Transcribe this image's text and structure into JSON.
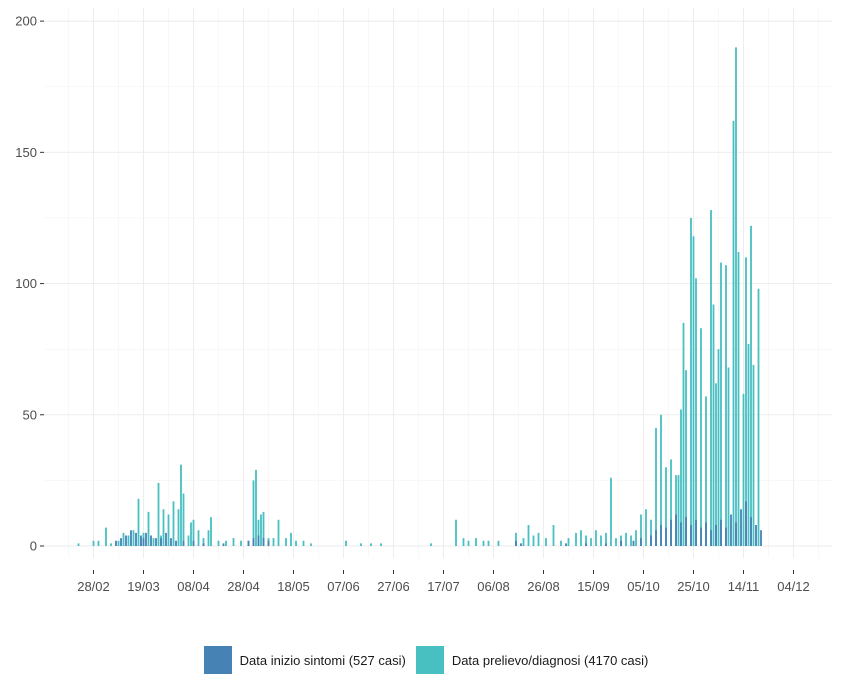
{
  "chart_data": {
    "type": "bar",
    "title": "",
    "xlabel": "",
    "ylabel": "",
    "ylim": [
      0,
      205
    ],
    "y_ticks": [
      0,
      50,
      100,
      150,
      200
    ],
    "x_tick_labels": [
      "28/02",
      "19/03",
      "08/04",
      "28/04",
      "18/05",
      "07/06",
      "27/06",
      "17/07",
      "06/08",
      "26/08",
      "15/09",
      "05/10",
      "25/10",
      "14/11",
      "04/12"
    ],
    "x_tick_dates": [
      "2020-02-28",
      "2020-03-19",
      "2020-04-08",
      "2020-04-28",
      "2020-05-18",
      "2020-06-07",
      "2020-06-27",
      "2020-07-17",
      "2020-08-06",
      "2020-08-26",
      "2020-09-15",
      "2020-10-05",
      "2020-10-25",
      "2020-11-14",
      "2020-12-04"
    ],
    "x_range": [
      "2020-02-17",
      "2020-12-09"
    ],
    "grid": true,
    "legend_position": "bottom",
    "stacked": true,
    "series": [
      {
        "name": "Data inizio sintomi (527 casi)",
        "color": "#4682b4",
        "points": [
          [
            "2020-03-08",
            2
          ],
          [
            "2020-03-10",
            3
          ],
          [
            "2020-03-12",
            4
          ],
          [
            "2020-03-14",
            6
          ],
          [
            "2020-03-16",
            5
          ],
          [
            "2020-03-18",
            4
          ],
          [
            "2020-03-19",
            3
          ],
          [
            "2020-03-20",
            5
          ],
          [
            "2020-03-22",
            4
          ],
          [
            "2020-03-24",
            3
          ],
          [
            "2020-03-26",
            3
          ],
          [
            "2020-03-28",
            5
          ],
          [
            "2020-03-30",
            3
          ],
          [
            "2020-04-01",
            2
          ],
          [
            "2020-04-04",
            2
          ],
          [
            "2020-04-08",
            2
          ],
          [
            "2020-04-12",
            1
          ],
          [
            "2020-04-20",
            1
          ],
          [
            "2020-04-30",
            2
          ],
          [
            "2020-05-02",
            3
          ],
          [
            "2020-05-04",
            4
          ],
          [
            "2020-05-06",
            3
          ],
          [
            "2020-05-08",
            2
          ],
          [
            "2020-08-15",
            2
          ],
          [
            "2020-08-17",
            1
          ],
          [
            "2020-09-04",
            1
          ],
          [
            "2020-09-12",
            1
          ],
          [
            "2020-09-20",
            1
          ],
          [
            "2020-09-26",
            2
          ],
          [
            "2020-10-01",
            2
          ],
          [
            "2020-10-04",
            3
          ],
          [
            "2020-10-08",
            4
          ],
          [
            "2020-10-10",
            6
          ],
          [
            "2020-10-12",
            8
          ],
          [
            "2020-10-14",
            7
          ],
          [
            "2020-10-16",
            10
          ],
          [
            "2020-10-18",
            12
          ],
          [
            "2020-10-20",
            9
          ],
          [
            "2020-10-22",
            11
          ],
          [
            "2020-10-24",
            8
          ],
          [
            "2020-10-26",
            10
          ],
          [
            "2020-10-28",
            7
          ],
          [
            "2020-10-30",
            9
          ],
          [
            "2020-11-01",
            6
          ],
          [
            "2020-11-03",
            8
          ],
          [
            "2020-11-05",
            10
          ],
          [
            "2020-11-07",
            7
          ],
          [
            "2020-11-09",
            12
          ],
          [
            "2020-11-11",
            9
          ],
          [
            "2020-11-13",
            14
          ],
          [
            "2020-11-15",
            17
          ],
          [
            "2020-11-17",
            11
          ],
          [
            "2020-11-19",
            8
          ],
          [
            "2020-11-21",
            6
          ]
        ]
      },
      {
        "name": "Data prelievo/diagnosi (4170 casi)",
        "color": "#48bfc0",
        "points": [
          [
            "2020-02-22",
            1
          ],
          [
            "2020-02-28",
            2
          ],
          [
            "2020-03-01",
            2
          ],
          [
            "2020-03-04",
            7
          ],
          [
            "2020-03-06",
            1
          ],
          [
            "2020-03-09",
            2
          ],
          [
            "2020-03-11",
            5
          ],
          [
            "2020-03-13",
            4
          ],
          [
            "2020-03-15",
            6
          ],
          [
            "2020-03-17",
            18
          ],
          [
            "2020-03-18",
            3
          ],
          [
            "2020-03-19",
            5
          ],
          [
            "2020-03-21",
            13
          ],
          [
            "2020-03-23",
            3
          ],
          [
            "2020-03-25",
            24
          ],
          [
            "2020-03-26",
            4
          ],
          [
            "2020-03-27",
            14
          ],
          [
            "2020-03-29",
            12
          ],
          [
            "2020-03-31",
            17
          ],
          [
            "2020-04-02",
            14
          ],
          [
            "2020-04-03",
            31
          ],
          [
            "2020-04-04",
            20
          ],
          [
            "2020-04-06",
            4
          ],
          [
            "2020-04-07",
            9
          ],
          [
            "2020-04-08",
            10
          ],
          [
            "2020-04-10",
            6
          ],
          [
            "2020-04-12",
            3
          ],
          [
            "2020-04-14",
            6
          ],
          [
            "2020-04-15",
            11
          ],
          [
            "2020-04-18",
            2
          ],
          [
            "2020-04-21",
            2
          ],
          [
            "2020-04-24",
            3
          ],
          [
            "2020-04-27",
            2
          ],
          [
            "2020-04-30",
            2
          ],
          [
            "2020-05-02",
            25
          ],
          [
            "2020-05-03",
            29
          ],
          [
            "2020-05-04",
            10
          ],
          [
            "2020-05-05",
            12
          ],
          [
            "2020-05-06",
            13
          ],
          [
            "2020-05-08",
            3
          ],
          [
            "2020-05-10",
            3
          ],
          [
            "2020-05-12",
            10
          ],
          [
            "2020-05-15",
            3
          ],
          [
            "2020-05-17",
            5
          ],
          [
            "2020-05-19",
            2
          ],
          [
            "2020-05-22",
            2
          ],
          [
            "2020-05-25",
            1
          ],
          [
            "2020-06-08",
            2
          ],
          [
            "2020-06-14",
            1
          ],
          [
            "2020-06-18",
            1
          ],
          [
            "2020-06-22",
            1
          ],
          [
            "2020-07-12",
            1
          ],
          [
            "2020-07-22",
            10
          ],
          [
            "2020-07-25",
            3
          ],
          [
            "2020-07-27",
            2
          ],
          [
            "2020-07-30",
            3
          ],
          [
            "2020-08-02",
            2
          ],
          [
            "2020-08-04",
            2
          ],
          [
            "2020-08-08",
            2
          ],
          [
            "2020-08-15",
            5
          ],
          [
            "2020-08-18",
            3
          ],
          [
            "2020-08-20",
            8
          ],
          [
            "2020-08-22",
            4
          ],
          [
            "2020-08-24",
            5
          ],
          [
            "2020-08-27",
            3
          ],
          [
            "2020-08-30",
            8
          ],
          [
            "2020-09-02",
            2
          ],
          [
            "2020-09-05",
            3
          ],
          [
            "2020-09-08",
            5
          ],
          [
            "2020-09-10",
            6
          ],
          [
            "2020-09-12",
            4
          ],
          [
            "2020-09-14",
            3
          ],
          [
            "2020-09-16",
            6
          ],
          [
            "2020-09-18",
            4
          ],
          [
            "2020-09-20",
            5
          ],
          [
            "2020-09-22",
            26
          ],
          [
            "2020-09-24",
            3
          ],
          [
            "2020-09-26",
            4
          ],
          [
            "2020-09-28",
            5
          ],
          [
            "2020-09-30",
            4
          ],
          [
            "2020-10-02",
            6
          ],
          [
            "2020-10-04",
            12
          ],
          [
            "2020-10-06",
            14
          ],
          [
            "2020-10-08",
            10
          ],
          [
            "2020-10-10",
            45
          ],
          [
            "2020-10-12",
            50
          ],
          [
            "2020-10-14",
            30
          ],
          [
            "2020-10-16",
            33
          ],
          [
            "2020-10-18",
            27
          ],
          [
            "2020-10-19",
            27
          ],
          [
            "2020-10-20",
            52
          ],
          [
            "2020-10-21",
            85
          ],
          [
            "2020-10-22",
            67
          ],
          [
            "2020-10-24",
            125
          ],
          [
            "2020-10-25",
            118
          ],
          [
            "2020-10-26",
            102
          ],
          [
            "2020-10-28",
            83
          ],
          [
            "2020-10-30",
            57
          ],
          [
            "2020-11-01",
            128
          ],
          [
            "2020-11-02",
            92
          ],
          [
            "2020-11-03",
            62
          ],
          [
            "2020-11-04",
            75
          ],
          [
            "2020-11-05",
            108
          ],
          [
            "2020-11-07",
            107
          ],
          [
            "2020-11-08",
            68
          ],
          [
            "2020-11-10",
            162
          ],
          [
            "2020-11-11",
            190
          ],
          [
            "2020-11-12",
            112
          ],
          [
            "2020-11-14",
            58
          ],
          [
            "2020-11-15",
            110
          ],
          [
            "2020-11-16",
            77
          ],
          [
            "2020-11-17",
            122
          ],
          [
            "2020-11-18",
            69
          ],
          [
            "2020-11-20",
            98
          ]
        ]
      }
    ]
  }
}
